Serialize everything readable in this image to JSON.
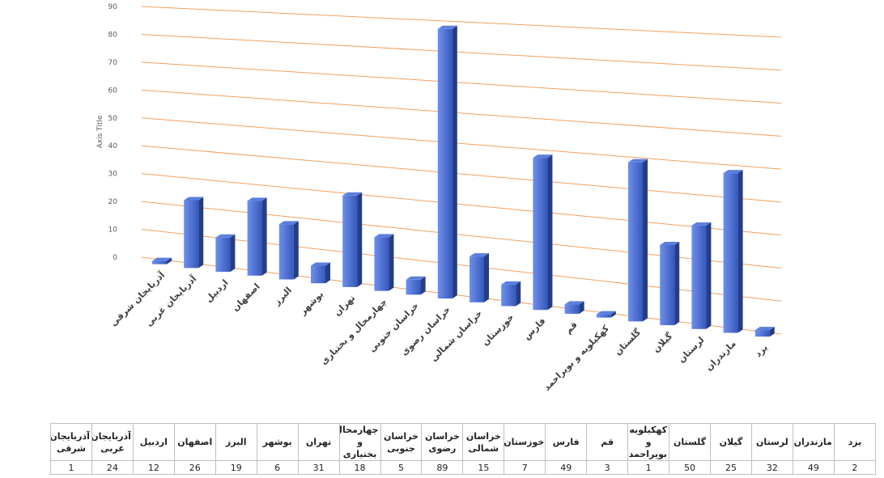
{
  "chart_data": {
    "type": "bar",
    "style": "3d-clustered-column",
    "ylabel": "Axis Title",
    "ylim": [
      0,
      90
    ],
    "y_ticks": [
      "0",
      "10",
      "20",
      "30",
      "40",
      "50",
      "60",
      "70",
      "80",
      "90"
    ],
    "grid": true,
    "legend": "none",
    "colors": {
      "bar": "#3f63c7",
      "bar_light": "#6f8fe6",
      "bar_side": "#223d8c",
      "bar_top": "#5a7fdc",
      "grid": "#f0a060"
    },
    "categories": [
      "آذربایجان شرقی",
      "آذربایجان غربی",
      "اردبیل",
      "اصفهان",
      "البرز",
      "بوشهر",
      "تهران",
      "چهارمحال و بختیاری",
      "خراسان جنوبی",
      "خراسان رضوی",
      "خراسان شمالی",
      "خوزستان",
      "فارس",
      "قم",
      "کهکیلویه و بویراحمد",
      "گلستان",
      "گیلان",
      "لرستان",
      "مازندران",
      "یزد"
    ],
    "values": [
      1,
      24,
      12,
      26,
      19,
      6,
      31,
      18,
      5,
      89,
      15,
      7,
      49,
      3,
      1,
      50,
      25,
      32,
      49,
      2
    ]
  },
  "table": {
    "headers": [
      "آذربایجان شرقی",
      "آذربایجان غربی",
      "اردبیل",
      "اصفهان",
      "البرز",
      "بوشهر",
      "تهران",
      "چهارمحال و بختیاری",
      "خراسان جنوبی",
      "خراسان رضوی",
      "خراسان شمالی",
      "خوزستان",
      "فارس",
      "قم",
      "کهکیلویه و بویراحمد",
      "گلستان",
      "گیلان",
      "لرستان",
      "مازندران",
      "یزد"
    ],
    "values": [
      "1",
      "24",
      "12",
      "26",
      "19",
      "6",
      "31",
      "18",
      "5",
      "89",
      "15",
      "7",
      "49",
      "3",
      "1",
      "50",
      "25",
      "32",
      "49",
      "2"
    ]
  }
}
